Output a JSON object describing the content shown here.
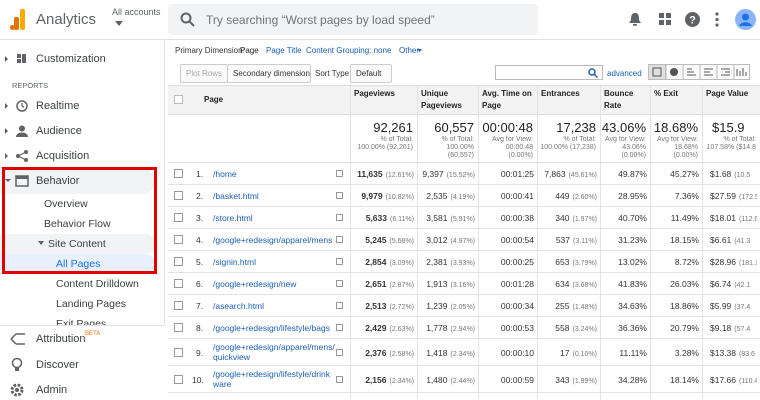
{
  "header": {
    "product": "Analytics",
    "account": "All accounts",
    "search_placeholder": "Try searching “Worst pages by load speed”"
  },
  "sidebar": {
    "items": [
      "Customization",
      "Realtime",
      "Audience",
      "Acquisition",
      "Behavior",
      "Overview",
      "Behavior Flow",
      "Site Content",
      "All Pages",
      "Content Drilldown",
      "Landing Pages",
      "Exit Pages",
      "Attribution",
      "Discover",
      "Admin"
    ],
    "reports_label": "REPORTS",
    "attribution_badge": "BETA"
  },
  "dimension_bar": {
    "label": "Primary Dimension:",
    "options": [
      "Page",
      "Page Title",
      "Content Grouping: none",
      "Other"
    ]
  },
  "toolbar": {
    "plot_rows": "Plot Rows",
    "secondary": "Secondary dimension",
    "sort_label": "Sort Type:",
    "sort_value": "Default",
    "advanced": "advanced"
  },
  "table": {
    "columns": [
      "Page",
      "Pageviews",
      "Unique Pageviews",
      "Avg. Time on Page",
      "Entrances",
      "Bounce Rate",
      "% Exit",
      "Page Value"
    ],
    "totals": [
      {
        "value": "92,261",
        "note": "% of Total: 100.00% (92,261)"
      },
      {
        "value": "60,557",
        "note": "% of Total: 100.00% (60,557)"
      },
      {
        "value": "00:00:48",
        "note": "Avg for View: 00:00:48 (0.00%)"
      },
      {
        "value": "17,238",
        "note": "% of Total: 100.00% (17,238)"
      },
      {
        "value": "43.06%",
        "note": "Avg for View: 43.06% (0.00%)"
      },
      {
        "value": "18.68%",
        "note": "Avg for View: 18.68% (0.00%)"
      },
      {
        "value": "$15.9",
        "note": "% of Total: 107.58% ($14.8"
      }
    ],
    "rows": [
      {
        "index": "1.",
        "page": "/home",
        "cells": [
          [
            "11,635",
            "(12.61%)"
          ],
          [
            "9,397",
            "(15.52%)"
          ],
          [
            "00:01:25"
          ],
          [
            "7,863",
            "(45.61%)"
          ],
          [
            "49.87%"
          ],
          [
            "45.27%"
          ],
          [
            "$1.68",
            "(10.5"
          ]
        ]
      },
      {
        "index": "2.",
        "page": "/basket.html",
        "cells": [
          [
            "9,979",
            "(10.82%)"
          ],
          [
            "2,535",
            "(4.19%)"
          ],
          [
            "00:00:41"
          ],
          [
            "449",
            "(2.60%)"
          ],
          [
            "28.95%"
          ],
          [
            "7.36%"
          ],
          [
            "$27.59",
            "(172.5"
          ]
        ]
      },
      {
        "index": "3.",
        "page": "/store.html",
        "cells": [
          [
            "5,633",
            "(6.11%)"
          ],
          [
            "3,581",
            "(5.91%)"
          ],
          [
            "00:00:38"
          ],
          [
            "340",
            "(1.97%)"
          ],
          [
            "40.70%"
          ],
          [
            "11.49%"
          ],
          [
            "$18.01",
            "(112.6"
          ]
        ]
      },
      {
        "index": "4.",
        "page": "/google+redesign/apparel/mens",
        "cells": [
          [
            "5,245",
            "(5.68%)"
          ],
          [
            "3,012",
            "(4.97%)"
          ],
          [
            "00:00:54"
          ],
          [
            "537",
            "(3.11%)"
          ],
          [
            "31.23%"
          ],
          [
            "18.15%"
          ],
          [
            "$6.61",
            "(41.3"
          ]
        ]
      },
      {
        "index": "5.",
        "page": "/signin.html",
        "cells": [
          [
            "2,854",
            "(3.09%)"
          ],
          [
            "2,381",
            "(3.93%)"
          ],
          [
            "00:00:25"
          ],
          [
            "653",
            "(3.79%)"
          ],
          [
            "13.02%"
          ],
          [
            "8.72%"
          ],
          [
            "$28.96",
            "(181.1"
          ]
        ]
      },
      {
        "index": "6.",
        "page": "/google+redesign/new",
        "cells": [
          [
            "2,651",
            "(2.87%)"
          ],
          [
            "1,913",
            "(3.16%)"
          ],
          [
            "00:01:28"
          ],
          [
            "634",
            "(3.68%)"
          ],
          [
            "41.83%"
          ],
          [
            "26.03%"
          ],
          [
            "$6.74",
            "(42.1"
          ]
        ]
      },
      {
        "index": "7.",
        "page": "/asearch.html",
        "cells": [
          [
            "2,513",
            "(2.72%)"
          ],
          [
            "1,239",
            "(2.05%)"
          ],
          [
            "00:00:34"
          ],
          [
            "255",
            "(1.48%)"
          ],
          [
            "34.63%"
          ],
          [
            "18.86%"
          ],
          [
            "$5.99",
            "(37.4"
          ]
        ]
      },
      {
        "index": "8.",
        "page": "/google+redesign/lifestyle/bags",
        "cells": [
          [
            "2,429",
            "(2.63%)"
          ],
          [
            "1,778",
            "(2.94%)"
          ],
          [
            "00:00:53"
          ],
          [
            "558",
            "(3.24%)"
          ],
          [
            "36.36%"
          ],
          [
            "20.79%"
          ],
          [
            "$9.18",
            "(57.4"
          ]
        ]
      },
      {
        "index": "9.",
        "page": "/google+redesign/apparel/mens/quickview",
        "cells": [
          [
            "2,376",
            "(2.58%)"
          ],
          [
            "1,418",
            "(2.34%)"
          ],
          [
            "00:00:10"
          ],
          [
            "17",
            "(0.10%)"
          ],
          [
            "11.11%"
          ],
          [
            "3.28%"
          ],
          [
            "$13.38",
            "(83.6"
          ]
        ]
      },
      {
        "index": "10.",
        "page": "/google+redesign/lifestyle/drinkware",
        "cells": [
          [
            "2,156",
            "(2.34%)"
          ],
          [
            "1,480",
            "(2.44%)"
          ],
          [
            "00:00:59"
          ],
          [
            "343",
            "(1.99%)"
          ],
          [
            "34.28%"
          ],
          [
            "18.14%"
          ],
          [
            "$17.66",
            "(110.4"
          ]
        ]
      }
    ]
  }
}
